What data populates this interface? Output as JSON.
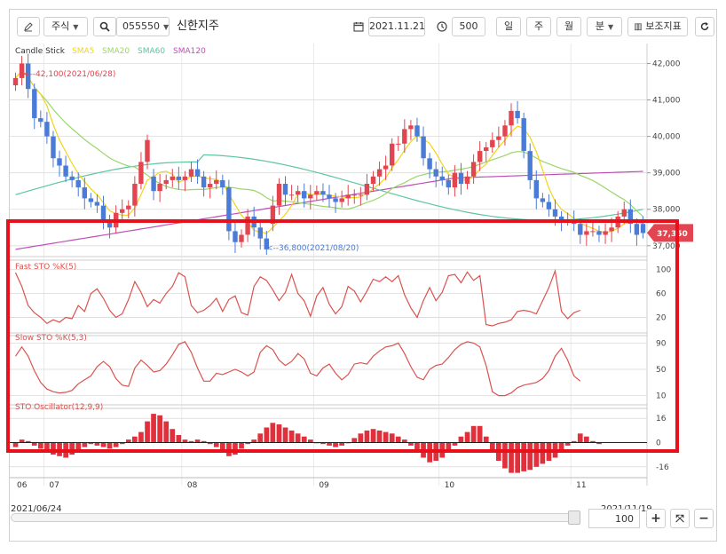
{
  "toolbar": {
    "market_select": "주식",
    "stock_code": "055550",
    "stock_name": "신한지주",
    "date_value": "2021.11.21",
    "count_value": "500",
    "period_day": "일",
    "period_week": "주",
    "period_month": "월",
    "period_minute": "분",
    "indicator_button": "보조지표"
  },
  "price_panel": {
    "legend": {
      "candle": "Candle Stick",
      "sma5": "SMA5",
      "sma20": "SMA20",
      "sma60": "SMA60",
      "sma120": "SMA120"
    },
    "y_ticks": [
      "42,000",
      "41,000",
      "40,000",
      "39,000",
      "38,000",
      "37,000"
    ],
    "high_marker": "<--42,100(2021/06/28)",
    "low_marker": "<--36,800(2021/08/20)",
    "current_price": "37,350"
  },
  "fast_sto": {
    "title": "Fast STO %K(5)",
    "y_ticks": [
      "100",
      "60",
      "20"
    ]
  },
  "slow_sto": {
    "title": "Slow STO %K(5,3)",
    "y_ticks": [
      "90",
      "50",
      "10"
    ]
  },
  "sto_osc": {
    "title": "STO Oscillator(12,9,9)",
    "y_ticks": [
      "16",
      "0",
      "-16"
    ]
  },
  "x_ticks": [
    "06",
    "07",
    "08",
    "09",
    "10",
    "11"
  ],
  "range": {
    "start": "2021/06/24",
    "end": "2021/11/19"
  },
  "zoom": {
    "value": "100"
  },
  "colors": {
    "up": "#e2454f",
    "down": "#4a7bd6",
    "sma5": "#f2d41b",
    "sma20": "#9bd66a",
    "sma60": "#5ec5a0",
    "sma120": "#c04fb8",
    "sto_line": "#d9534f",
    "highlight": "#e8101a"
  },
  "chart_data": [
    {
      "type": "candlestick",
      "title": "",
      "x": [
        "2021-06-24",
        "2021-06-25",
        "2021-06-28",
        "2021-06-29",
        "2021-06-30",
        "2021-07-01",
        "2021-07-02",
        "2021-07-05",
        "2021-07-06",
        "2021-07-07",
        "2021-07-08",
        "2021-07-09",
        "2021-07-12",
        "2021-07-13",
        "2021-07-14",
        "2021-07-15",
        "2021-07-16",
        "2021-07-19",
        "2021-07-20",
        "2021-07-21",
        "2021-07-22",
        "2021-07-23",
        "2021-07-26",
        "2021-07-27",
        "2021-07-28",
        "2021-07-29",
        "2021-07-30",
        "2021-08-02",
        "2021-08-03",
        "2021-08-04",
        "2021-08-05",
        "2021-08-06",
        "2021-08-09",
        "2021-08-10",
        "2021-08-11",
        "2021-08-12",
        "2021-08-13",
        "2021-08-17",
        "2021-08-18",
        "2021-08-19",
        "2021-08-20",
        "2021-08-23",
        "2021-08-24",
        "2021-08-25",
        "2021-08-26",
        "2021-08-27",
        "2021-08-30",
        "2021-08-31",
        "2021-09-01",
        "2021-09-02",
        "2021-09-03",
        "2021-09-06",
        "2021-09-07",
        "2021-09-08",
        "2021-09-09",
        "2021-09-10",
        "2021-09-13",
        "2021-09-14",
        "2021-09-15",
        "2021-09-16",
        "2021-09-17",
        "2021-09-23",
        "2021-09-24",
        "2021-09-27",
        "2021-09-28",
        "2021-09-29",
        "2021-09-30",
        "2021-10-01",
        "2021-10-05",
        "2021-10-06",
        "2021-10-07",
        "2021-10-08",
        "2021-10-12",
        "2021-10-13",
        "2021-10-14",
        "2021-10-15",
        "2021-10-18",
        "2021-10-19",
        "2021-10-20",
        "2021-10-21",
        "2021-10-22",
        "2021-10-25",
        "2021-10-26",
        "2021-10-27",
        "2021-10-28",
        "2021-10-29",
        "2021-11-01",
        "2021-11-02",
        "2021-11-03",
        "2021-11-04",
        "2021-11-05",
        "2021-11-08",
        "2021-11-09",
        "2021-11-10",
        "2021-11-11",
        "2021-11-12",
        "2021-11-15",
        "2021-11-16",
        "2021-11-17",
        "2021-11-18",
        "2021-11-19"
      ],
      "open": [
        41400,
        41600,
        42000,
        41300,
        40500,
        40400,
        40000,
        39400,
        39200,
        38900,
        38800,
        38600,
        38300,
        38200,
        38100,
        37700,
        37500,
        37900,
        38000,
        38100,
        38700,
        39300,
        38900,
        38500,
        38700,
        38800,
        38900,
        38800,
        38900,
        39100,
        38900,
        38600,
        38700,
        38800,
        38600,
        37400,
        37100,
        37300,
        37800,
        37500,
        37200,
        37600,
        38100,
        38700,
        38400,
        38400,
        38500,
        38300,
        38400,
        38500,
        38400,
        38300,
        38200,
        38300,
        38400,
        38400,
        38400,
        38700,
        38900,
        39100,
        39200,
        39800,
        39800,
        40200,
        40300,
        40000,
        39400,
        39100,
        38900,
        38800,
        38600,
        39000,
        38700,
        38900,
        39300,
        39600,
        39700,
        39900,
        40000,
        40300,
        40700,
        40500,
        39600,
        38800,
        38300,
        38200,
        38000,
        37800,
        37700,
        37700,
        37600,
        37300,
        37400,
        37400,
        37300,
        37400,
        37500,
        37800,
        38000,
        37600,
        37600
      ],
      "close": [
        41600,
        42000,
        41300,
        40500,
        40400,
        40000,
        39400,
        39200,
        38900,
        38800,
        38600,
        38300,
        38200,
        38100,
        37700,
        37500,
        37900,
        38000,
        38100,
        38700,
        39300,
        39900,
        38500,
        38700,
        38800,
        38900,
        38800,
        38900,
        39100,
        38900,
        38600,
        38700,
        38800,
        38600,
        37400,
        37100,
        37300,
        37800,
        37500,
        37200,
        36900,
        38100,
        38700,
        38400,
        38400,
        38500,
        38300,
        38400,
        38500,
        38400,
        38300,
        38200,
        38300,
        38400,
        38400,
        38400,
        38700,
        38900,
        39100,
        39200,
        39800,
        39800,
        40200,
        40300,
        40000,
        39400,
        39100,
        38900,
        38800,
        38600,
        39000,
        38700,
        38900,
        39300,
        39600,
        39700,
        39900,
        40000,
        40300,
        40700,
        40500,
        39600,
        38800,
        38300,
        38200,
        38000,
        37800,
        37700,
        37700,
        37600,
        37300,
        37400,
        37400,
        37300,
        37400,
        37500,
        37800,
        38000,
        37600,
        37300,
        37350
      ]
    },
    {
      "type": "line",
      "title": "Fast STO %K(5)",
      "series": [
        {
          "name": "Fast STO %K(5)",
          "values": [
            95,
            72,
            40,
            28,
            20,
            10,
            16,
            12,
            20,
            18,
            40,
            30,
            60,
            68,
            52,
            32,
            20,
            26,
            50,
            80,
            62,
            38,
            50,
            44,
            60,
            72,
            95,
            88,
            40,
            28,
            32,
            40,
            52,
            30,
            50,
            56,
            28,
            24,
            72,
            88,
            82,
            66,
            48,
            62,
            92,
            60,
            48,
            22,
            56,
            70,
            42,
            26,
            38,
            72,
            64,
            46,
            64,
            84,
            80,
            88,
            80,
            90,
            58,
            36,
            20,
            48,
            70,
            48,
            62,
            90,
            92,
            78,
            96,
            82,
            90,
            8,
            6,
            10,
            12,
            16,
            30,
            32,
            30,
            26,
            48,
            70,
            98,
            30,
            18,
            28,
            32
          ]
        }
      ],
      "ylim": [
        0,
        110
      ]
    },
    {
      "type": "line",
      "title": "Slow STO %K(5,3)",
      "series": [
        {
          "name": "Slow STO %K(5,3)",
          "values": [
            70,
            84,
            70,
            48,
            30,
            20,
            16,
            14,
            15,
            18,
            28,
            34,
            40,
            54,
            62,
            54,
            36,
            26,
            24,
            52,
            64,
            56,
            46,
            48,
            58,
            72,
            88,
            92,
            76,
            52,
            32,
            32,
            44,
            42,
            46,
            50,
            46,
            40,
            46,
            76,
            86,
            80,
            64,
            56,
            62,
            74,
            66,
            44,
            40,
            52,
            58,
            44,
            34,
            42,
            58,
            60,
            58,
            70,
            78,
            84,
            86,
            90,
            74,
            54,
            38,
            34,
            50,
            56,
            58,
            68,
            80,
            88,
            92,
            90,
            84,
            56,
            16,
            10,
            10,
            14,
            22,
            26,
            28,
            30,
            36,
            48,
            70,
            82,
            64,
            40,
            32
          ]
        }
      ],
      "ylim": [
        0,
        100
      ]
    },
    {
      "type": "bar",
      "title": "STO Oscillator(12,9,9)",
      "series": [
        {
          "name": "STO Oscillator(12,9,9)",
          "values": [
            -3,
            2,
            1,
            -2,
            -4,
            -6,
            -8,
            -9,
            -10,
            -8,
            -5,
            -3,
            -1,
            -2,
            -3,
            -4,
            -3,
            -1,
            2,
            4,
            7,
            14,
            19,
            18,
            14,
            9,
            5,
            2,
            1,
            2,
            1,
            -1,
            -3,
            -6,
            -9,
            -8,
            -4,
            -1,
            2,
            6,
            10,
            13,
            12,
            10,
            8,
            6,
            4,
            2,
            0,
            -1,
            -2,
            -3,
            -2,
            0,
            3,
            6,
            8,
            9,
            8,
            7,
            6,
            4,
            2,
            -2,
            -6,
            -10,
            -13,
            -12,
            -10,
            -6,
            -2,
            4,
            7,
            11,
            11,
            4,
            -6,
            -12,
            -17,
            -20,
            -20,
            -19,
            -18,
            -16,
            -14,
            -12,
            -10,
            -6,
            -2,
            1,
            6,
            4,
            1,
            -1
          ]
        }
      ],
      "ylim": [
        -22,
        22
      ]
    }
  ]
}
